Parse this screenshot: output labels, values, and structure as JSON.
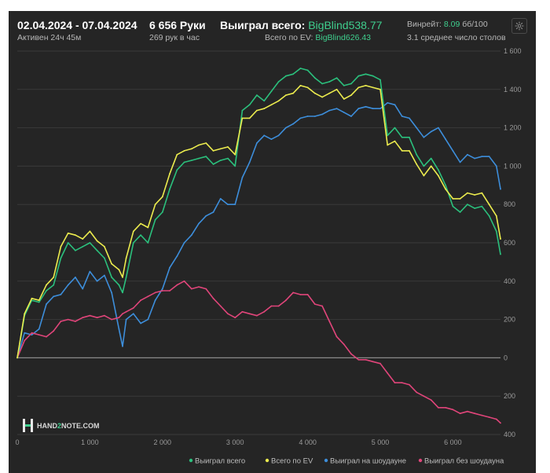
{
  "header": {
    "date_range": "02.04.2024 - 07.04.2024",
    "active": "Активен 24ч 45м",
    "hands_count": "6 656 Руки",
    "hands_per_hour": "269 рук в час",
    "won_total_label": "Выиграл всего:",
    "won_total_value": "BigBlind538.77",
    "ev_total_label": "Всего по EV:",
    "ev_total_value": "BigBlind626.43",
    "winrate_label": "Винрейт:",
    "winrate_value": "8.09",
    "winrate_unit": "бб/100",
    "avg_tables": "3.1 среднее число столов"
  },
  "watermark": {
    "brand_prefix": "HAND",
    "brand_middle": "2",
    "brand_suffix": "NOTE.COM"
  },
  "colors": {
    "background": "#252525",
    "grid": "#3a3a3a",
    "zero_line": "#8a8a8a",
    "accent": "#3fcf8e",
    "won": "#2bc07d",
    "ev": "#ecec4e",
    "showdown": "#3d8edb",
    "non_showdown": "#e0457a"
  },
  "chart_data": {
    "type": "line",
    "x_label": "",
    "y_label": "",
    "xlim": [
      0,
      6656
    ],
    "ylim": [
      -400,
      1600
    ],
    "x_ticks": [
      0,
      1000,
      2000,
      3000,
      4000,
      5000,
      6000
    ],
    "x_tick_labels": [
      "0",
      "1 000",
      "2 000",
      "3 000",
      "4 000",
      "5 000",
      "6 000"
    ],
    "y_ticks": [
      1600,
      1400,
      1200,
      1000,
      800,
      600,
      400,
      200,
      0,
      -200,
      -400
    ],
    "y_tick_labels": [
      "1 600",
      "1 400",
      "1 200",
      "1 000",
      "800",
      "600",
      "400",
      "200",
      "0",
      "200",
      "400"
    ],
    "grid": true,
    "legend_position": "bottom-right",
    "series": [
      {
        "name": "Выиграл всего",
        "color": "#2bc07d",
        "x": [
          0,
          100,
          200,
          300,
          400,
          500,
          600,
          700,
          800,
          900,
          1000,
          1100,
          1200,
          1300,
          1400,
          1450,
          1500,
          1600,
          1700,
          1800,
          1900,
          2000,
          2100,
          2200,
          2300,
          2400,
          2500,
          2600,
          2700,
          2800,
          2900,
          3000,
          3100,
          3200,
          3300,
          3400,
          3500,
          3600,
          3700,
          3800,
          3900,
          4000,
          4100,
          4200,
          4300,
          4400,
          4500,
          4600,
          4700,
          4800,
          4900,
          5000,
          5100,
          5200,
          5300,
          5400,
          5500,
          5600,
          5700,
          5800,
          5900,
          6000,
          6100,
          6200,
          6300,
          6400,
          6500,
          6600,
          6656
        ],
        "y": [
          0,
          220,
          300,
          290,
          350,
          380,
          520,
          600,
          560,
          580,
          600,
          560,
          520,
          420,
          380,
          340,
          420,
          600,
          640,
          600,
          720,
          760,
          880,
          980,
          1020,
          1030,
          1040,
          1050,
          1010,
          1030,
          1040,
          1000,
          1290,
          1320,
          1370,
          1340,
          1390,
          1440,
          1470,
          1480,
          1510,
          1500,
          1460,
          1430,
          1440,
          1460,
          1420,
          1430,
          1470,
          1480,
          1470,
          1450,
          1160,
          1200,
          1150,
          1150,
          1060,
          1000,
          1040,
          980,
          900,
          790,
          760,
          800,
          780,
          790,
          740,
          660,
          540
        ]
      },
      {
        "name": "Всего по EV",
        "color": "#ecec4e",
        "x": [
          0,
          100,
          200,
          300,
          400,
          500,
          600,
          700,
          800,
          900,
          1000,
          1100,
          1200,
          1300,
          1400,
          1450,
          1500,
          1600,
          1700,
          1800,
          1900,
          2000,
          2100,
          2200,
          2300,
          2400,
          2500,
          2600,
          2700,
          2800,
          2900,
          3000,
          3100,
          3200,
          3300,
          3400,
          3500,
          3600,
          3700,
          3800,
          3900,
          4000,
          4100,
          4200,
          4300,
          4400,
          4500,
          4600,
          4700,
          4800,
          4900,
          5000,
          5100,
          5200,
          5300,
          5400,
          5500,
          5600,
          5700,
          5800,
          5900,
          6000,
          6100,
          6200,
          6300,
          6400,
          6500,
          6600,
          6656
        ],
        "y": [
          0,
          230,
          310,
          300,
          380,
          420,
          580,
          650,
          640,
          620,
          660,
          610,
          580,
          490,
          460,
          420,
          520,
          660,
          700,
          680,
          800,
          840,
          960,
          1060,
          1080,
          1090,
          1110,
          1120,
          1080,
          1090,
          1100,
          1060,
          1250,
          1250,
          1290,
          1300,
          1320,
          1340,
          1370,
          1380,
          1420,
          1410,
          1380,
          1360,
          1380,
          1400,
          1350,
          1370,
          1410,
          1420,
          1410,
          1400,
          1110,
          1130,
          1080,
          1080,
          1010,
          950,
          1000,
          950,
          880,
          830,
          830,
          860,
          850,
          860,
          800,
          740,
          620
        ]
      },
      {
        "name": "Выиграл на шоудауне",
        "color": "#3d8edb",
        "x": [
          0,
          100,
          200,
          300,
          400,
          500,
          600,
          700,
          800,
          900,
          1000,
          1100,
          1200,
          1300,
          1400,
          1450,
          1500,
          1600,
          1700,
          1800,
          1900,
          2000,
          2100,
          2200,
          2300,
          2400,
          2500,
          2600,
          2700,
          2800,
          2900,
          3000,
          3100,
          3200,
          3300,
          3400,
          3500,
          3600,
          3700,
          3800,
          3900,
          4000,
          4100,
          4200,
          4300,
          4400,
          4500,
          4600,
          4700,
          4800,
          4900,
          5000,
          5100,
          5200,
          5300,
          5400,
          5500,
          5600,
          5700,
          5800,
          5900,
          6000,
          6100,
          6200,
          6300,
          6400,
          6500,
          6600,
          6656
        ],
        "y": [
          0,
          130,
          120,
          150,
          280,
          320,
          330,
          380,
          420,
          360,
          450,
          400,
          430,
          340,
          150,
          60,
          200,
          230,
          180,
          200,
          300,
          360,
          470,
          530,
          600,
          640,
          700,
          740,
          760,
          830,
          800,
          800,
          940,
          1020,
          1120,
          1160,
          1140,
          1160,
          1200,
          1220,
          1250,
          1260,
          1260,
          1270,
          1290,
          1300,
          1280,
          1260,
          1300,
          1310,
          1300,
          1300,
          1330,
          1320,
          1260,
          1250,
          1200,
          1150,
          1180,
          1200,
          1140,
          1080,
          1020,
          1060,
          1040,
          1050,
          1050,
          1000,
          880
        ]
      },
      {
        "name": "Выиграл без шоудауна",
        "color": "#e0457a",
        "x": [
          0,
          100,
          200,
          300,
          400,
          500,
          600,
          700,
          800,
          900,
          1000,
          1100,
          1200,
          1300,
          1400,
          1450,
          1500,
          1600,
          1700,
          1800,
          1900,
          2000,
          2100,
          2200,
          2300,
          2400,
          2500,
          2600,
          2700,
          2800,
          2900,
          3000,
          3100,
          3200,
          3300,
          3400,
          3500,
          3600,
          3700,
          3800,
          3900,
          4000,
          4100,
          4200,
          4300,
          4400,
          4500,
          4600,
          4700,
          4800,
          4900,
          5000,
          5100,
          5200,
          5300,
          5400,
          5500,
          5600,
          5700,
          5800,
          5900,
          6000,
          6100,
          6200,
          6300,
          6400,
          6500,
          6600,
          6656
        ],
        "y": [
          0,
          90,
          130,
          120,
          110,
          140,
          190,
          200,
          190,
          210,
          220,
          210,
          220,
          200,
          210,
          230,
          240,
          260,
          300,
          320,
          340,
          350,
          350,
          380,
          400,
          360,
          370,
          360,
          310,
          270,
          230,
          210,
          240,
          230,
          220,
          240,
          270,
          270,
          300,
          340,
          330,
          330,
          280,
          270,
          190,
          110,
          70,
          20,
          -10,
          -10,
          -20,
          -30,
          -80,
          -130,
          -130,
          -140,
          -180,
          -200,
          -220,
          -260,
          -260,
          -270,
          -290,
          -280,
          -290,
          -300,
          -310,
          -320,
          -340
        ]
      }
    ]
  }
}
